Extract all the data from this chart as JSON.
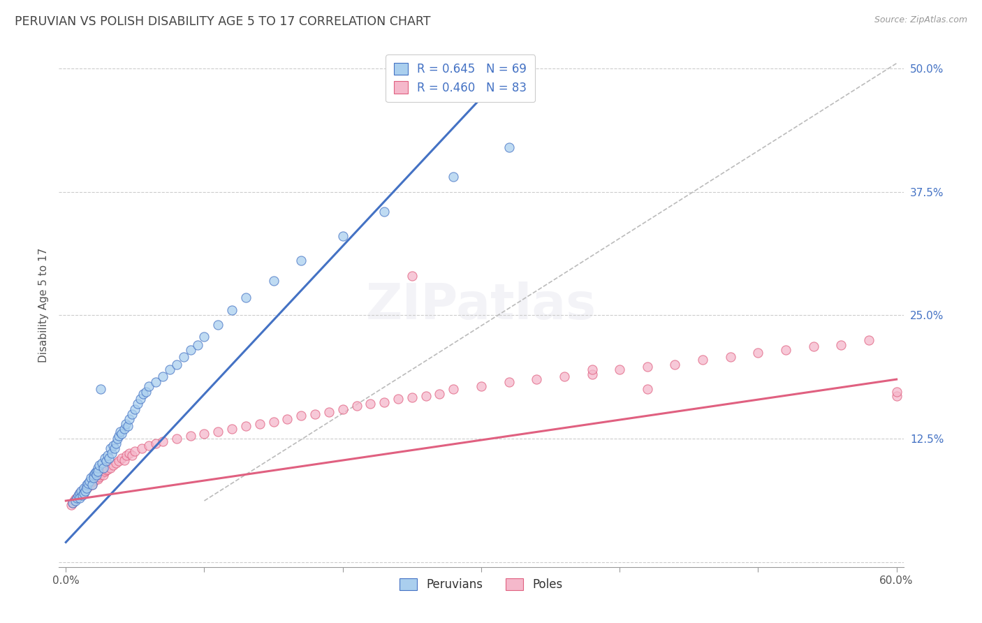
{
  "title": "PERUVIAN VS POLISH DISABILITY AGE 5 TO 17 CORRELATION CHART",
  "source": "Source: ZipAtlas.com",
  "ylabel": "Disability Age 5 to 17",
  "xlim": [
    0.0,
    0.6
  ],
  "ylim": [
    0.0,
    0.52
  ],
  "xticks": [
    0.0,
    0.1,
    0.2,
    0.3,
    0.4,
    0.5,
    0.6
  ],
  "xtick_labels": [
    "0.0%",
    "",
    "",
    "",
    "",
    "",
    "60.0%"
  ],
  "yticks": [
    0.0,
    0.125,
    0.25,
    0.375,
    0.5
  ],
  "ytick_labels": [
    "",
    "12.5%",
    "25.0%",
    "37.5%",
    "50.0%"
  ],
  "legend_R1": "R = 0.645",
  "legend_N1": "N = 69",
  "legend_R2": "R = 0.460",
  "legend_N2": "N = 83",
  "color_peruvian": "#aacfee",
  "color_pole": "#f5b8cb",
  "color_peruvian_line": "#4472c4",
  "color_pole_line": "#e06080",
  "color_ref_line": "#bbbbbb",
  "peruvian_x": [
    0.005,
    0.007,
    0.008,
    0.009,
    0.01,
    0.01,
    0.011,
    0.012,
    0.013,
    0.013,
    0.014,
    0.015,
    0.015,
    0.016,
    0.017,
    0.018,
    0.019,
    0.02,
    0.02,
    0.021,
    0.022,
    0.022,
    0.023,
    0.023,
    0.024,
    0.025,
    0.026,
    0.027,
    0.028,
    0.029,
    0.03,
    0.031,
    0.032,
    0.033,
    0.034,
    0.035,
    0.036,
    0.037,
    0.038,
    0.039,
    0.04,
    0.042,
    0.043,
    0.045,
    0.046,
    0.048,
    0.05,
    0.052,
    0.054,
    0.056,
    0.058,
    0.06,
    0.065,
    0.07,
    0.075,
    0.08,
    0.085,
    0.09,
    0.095,
    0.1,
    0.11,
    0.12,
    0.13,
    0.15,
    0.17,
    0.2,
    0.23,
    0.28,
    0.32
  ],
  "peruvian_y": [
    0.06,
    0.062,
    0.065,
    0.068,
    0.07,
    0.065,
    0.072,
    0.068,
    0.075,
    0.07,
    0.072,
    0.078,
    0.075,
    0.08,
    0.082,
    0.085,
    0.078,
    0.088,
    0.085,
    0.09,
    0.092,
    0.088,
    0.095,
    0.092,
    0.098,
    0.175,
    0.1,
    0.095,
    0.105,
    0.102,
    0.108,
    0.105,
    0.115,
    0.11,
    0.118,
    0.115,
    0.12,
    0.125,
    0.128,
    0.132,
    0.13,
    0.135,
    0.14,
    0.138,
    0.145,
    0.15,
    0.155,
    0.16,
    0.165,
    0.17,
    0.172,
    0.178,
    0.182,
    0.188,
    0.195,
    0.2,
    0.208,
    0.215,
    0.22,
    0.228,
    0.24,
    0.255,
    0.268,
    0.285,
    0.305,
    0.33,
    0.355,
    0.39,
    0.42
  ],
  "pole_x": [
    0.004,
    0.005,
    0.006,
    0.007,
    0.008,
    0.009,
    0.01,
    0.01,
    0.011,
    0.012,
    0.013,
    0.014,
    0.015,
    0.016,
    0.017,
    0.018,
    0.019,
    0.02,
    0.021,
    0.022,
    0.023,
    0.024,
    0.025,
    0.026,
    0.027,
    0.028,
    0.029,
    0.03,
    0.032,
    0.034,
    0.036,
    0.038,
    0.04,
    0.042,
    0.044,
    0.046,
    0.048,
    0.05,
    0.055,
    0.06,
    0.065,
    0.07,
    0.08,
    0.09,
    0.1,
    0.11,
    0.12,
    0.13,
    0.14,
    0.15,
    0.16,
    0.17,
    0.18,
    0.19,
    0.2,
    0.21,
    0.22,
    0.23,
    0.24,
    0.25,
    0.26,
    0.27,
    0.28,
    0.3,
    0.32,
    0.34,
    0.36,
    0.38,
    0.4,
    0.42,
    0.44,
    0.46,
    0.48,
    0.5,
    0.52,
    0.54,
    0.56,
    0.58,
    0.6,
    0.6,
    0.25,
    0.38,
    0.42
  ],
  "pole_y": [
    0.058,
    0.06,
    0.062,
    0.064,
    0.065,
    0.067,
    0.068,
    0.07,
    0.068,
    0.072,
    0.07,
    0.073,
    0.075,
    0.076,
    0.078,
    0.08,
    0.078,
    0.082,
    0.083,
    0.085,
    0.084,
    0.086,
    0.088,
    0.09,
    0.088,
    0.092,
    0.093,
    0.094,
    0.095,
    0.098,
    0.1,
    0.102,
    0.105,
    0.103,
    0.108,
    0.11,
    0.108,
    0.112,
    0.115,
    0.118,
    0.12,
    0.122,
    0.125,
    0.128,
    0.13,
    0.132,
    0.135,
    0.138,
    0.14,
    0.142,
    0.145,
    0.148,
    0.15,
    0.152,
    0.155,
    0.158,
    0.16,
    0.162,
    0.165,
    0.167,
    0.168,
    0.17,
    0.175,
    0.178,
    0.182,
    0.185,
    0.188,
    0.19,
    0.195,
    0.198,
    0.2,
    0.205,
    0.208,
    0.212,
    0.215,
    0.218,
    0.22,
    0.225,
    0.168,
    0.172,
    0.29,
    0.195,
    0.175
  ],
  "peruvian_line_x": [
    0.0,
    0.32
  ],
  "peruvian_line_y": [
    0.02,
    0.5
  ],
  "pole_line_x": [
    0.0,
    0.6
  ],
  "pole_line_y": [
    0.062,
    0.185
  ],
  "ref_line_x": [
    0.1,
    0.6
  ],
  "ref_line_y": [
    0.062,
    0.505
  ]
}
